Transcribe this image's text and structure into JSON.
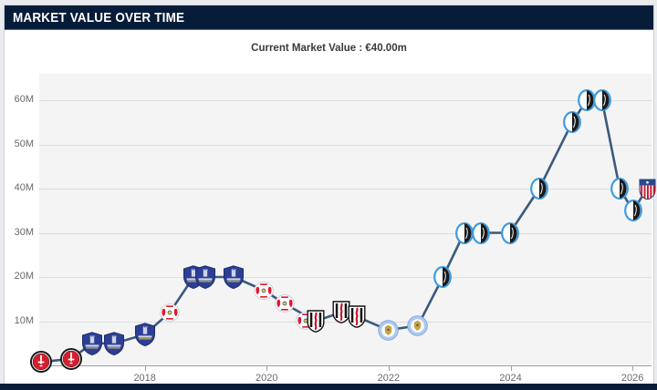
{
  "header": {
    "title": "MARKET VALUE OVER TIME"
  },
  "summary": {
    "current_market_value_label": "Current Market Value : €40.00m"
  },
  "chart_data": {
    "type": "line",
    "title": "MARKET VALUE OVER TIME",
    "subtitle": "Current Market Value : €40.00m",
    "x_axis": {
      "ticks": [
        2018,
        2020,
        2022,
        2024,
        2026
      ],
      "range": [
        2016.27,
        2026.31
      ],
      "unit": "year"
    },
    "y_axis": {
      "gridline_values": [
        10,
        20,
        30,
        40,
        50,
        60
      ],
      "tick_format": "{value}M",
      "range": [
        0,
        66
      ],
      "currency": "EUR"
    },
    "grid": true,
    "legend": false,
    "line_color": "#3b5a7c",
    "value_unit": "€ million",
    "points": [
      {
        "x": 2016.3,
        "value": 0.75,
        "club": "charlton"
      },
      {
        "x": 2016.79,
        "value": 1.5,
        "club": "charlton"
      },
      {
        "x": 2017.14,
        "value": 5,
        "club": "everton"
      },
      {
        "x": 2017.5,
        "value": 5,
        "club": "everton"
      },
      {
        "x": 2018.0,
        "value": 7,
        "club": "everton"
      },
      {
        "x": 2018.41,
        "value": 12,
        "club": "leipzig"
      },
      {
        "x": 2018.8,
        "value": 20,
        "club": "everton"
      },
      {
        "x": 2018.99,
        "value": 20,
        "club": "everton"
      },
      {
        "x": 2019.46,
        "value": 20,
        "club": "everton"
      },
      {
        "x": 2019.95,
        "value": 17,
        "club": "leipzig"
      },
      {
        "x": 2020.29,
        "value": 14,
        "club": "leipzig"
      },
      {
        "x": 2020.8,
        "value": 10,
        "club": "fulham",
        "secondary_club": "leipzig"
      },
      {
        "x": 2021.22,
        "value": 12,
        "club": "fulham"
      },
      {
        "x": 2021.48,
        "value": 11,
        "club": "fulham"
      },
      {
        "x": 2021.99,
        "value": 8,
        "club": "leicester"
      },
      {
        "x": 2022.48,
        "value": 9,
        "club": "leicester"
      },
      {
        "x": 2022.89,
        "value": 20,
        "club": "atalanta"
      },
      {
        "x": 2023.24,
        "value": 30,
        "club": "atalanta"
      },
      {
        "x": 2023.51,
        "value": 30,
        "club": "atalanta"
      },
      {
        "x": 2023.99,
        "value": 30,
        "club": "atalanta"
      },
      {
        "x": 2024.47,
        "value": 40,
        "club": "atalanta"
      },
      {
        "x": 2025.01,
        "value": 55,
        "club": "atalanta"
      },
      {
        "x": 2025.25,
        "value": 60,
        "club": "atalanta"
      },
      {
        "x": 2025.5,
        "value": 60,
        "club": "atalanta"
      },
      {
        "x": 2025.79,
        "value": 40,
        "club": "atalanta"
      },
      {
        "x": 2026.01,
        "value": 35,
        "club": "atalanta"
      },
      {
        "x": 2026.24,
        "value": 40,
        "club": "atletico"
      }
    ]
  },
  "icons": {
    "charlton": "charlton-athletic-badge-icon",
    "everton": "everton-badge-icon",
    "leipzig": "rb-leipzig-badge-icon",
    "fulham": "fulham-badge-icon",
    "leicester": "leicester-city-badge-icon",
    "atalanta": "atalanta-badge-icon",
    "atletico": "atletico-madrid-badge-icon"
  },
  "colors": {
    "header_bg": "#071c39",
    "plot_bg": "#f4f4f5",
    "gridline": "#dddee0",
    "axis_text": "#67696c",
    "line": "#3b5a7c"
  }
}
